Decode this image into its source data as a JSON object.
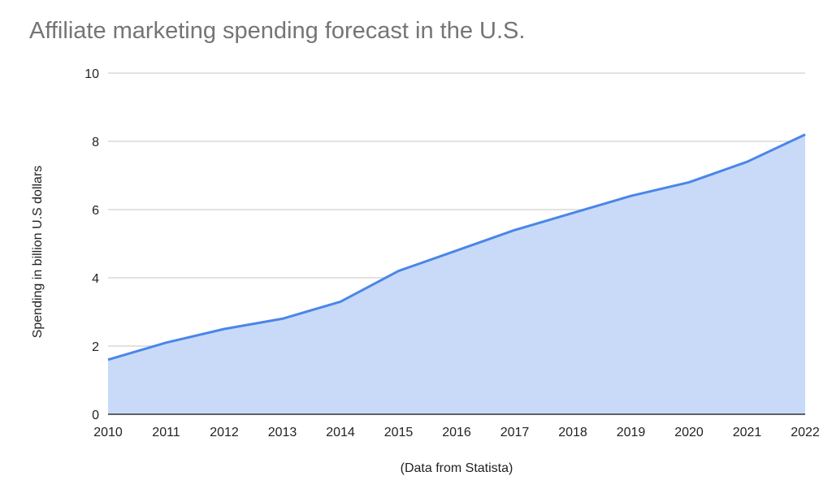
{
  "chart_data": {
    "type": "area",
    "title": "Affiliate marketing spending forecast in the U.S.",
    "xlabel": "",
    "ylabel": "Spending in billion U.S dollars",
    "footnote": "(Data from Statista)",
    "categories": [
      "2010",
      "2011",
      "2012",
      "2013",
      "2014",
      "2015",
      "2016",
      "2017",
      "2018",
      "2019",
      "2020",
      "2021",
      "2022"
    ],
    "series": [
      {
        "values": [
          1.6,
          2.1,
          2.5,
          2.8,
          3.3,
          4.2,
          4.8,
          5.4,
          5.9,
          6.4,
          6.8,
          7.4,
          8.2
        ]
      }
    ],
    "ylim": [
      0,
      10
    ],
    "yticks": [
      "0",
      "2",
      "4",
      "6",
      "8",
      "10"
    ],
    "grid": true,
    "colors": {
      "line": "#4a86e8",
      "fill": "#c9daf8",
      "grid": "#d9d9d9",
      "title": "#757575"
    }
  }
}
